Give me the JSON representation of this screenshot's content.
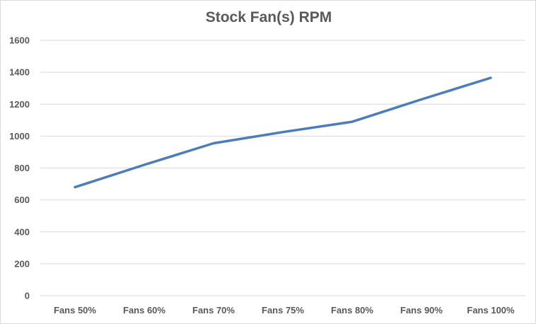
{
  "chart_data": {
    "type": "line",
    "title": "Stock Fan(s) RPM",
    "xlabel": "",
    "ylabel": "",
    "categories": [
      "Fans 50%",
      "Fans 60%",
      "Fans 70%",
      "Fans 75%",
      "Fans 80%",
      "Fans 90%",
      "Fans 100%"
    ],
    "series": [
      {
        "values": [
          680,
          820,
          955,
          1025,
          1090,
          1230,
          1365
        ],
        "color": "#4a7ebb"
      }
    ],
    "ylim": [
      0,
      1600
    ],
    "yticks": [
      0,
      200,
      400,
      600,
      800,
      1000,
      1200,
      1400,
      1600
    ],
    "grid": true,
    "gridColor": "#d9d9d9",
    "legend": "none"
  }
}
